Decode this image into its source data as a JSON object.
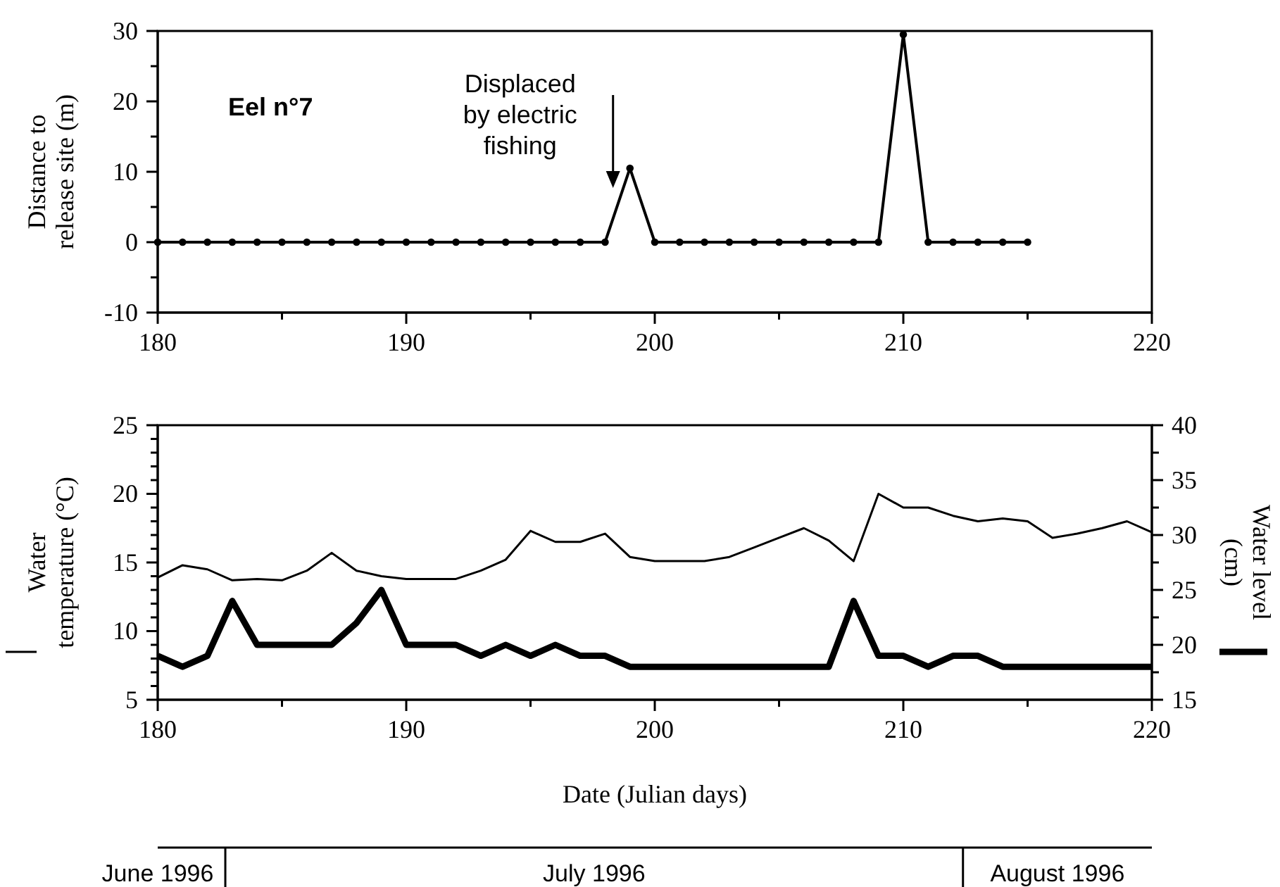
{
  "chart_data": [
    {
      "type": "line",
      "ylabel": "Distance to release site (m)",
      "marker": "circle",
      "xlim": [
        180,
        220
      ],
      "xticks": [
        180,
        {
          "value": 185,
          "label": null
        },
        190,
        {
          "value": 195,
          "label": null
        },
        200,
        {
          "value": 205,
          "label": null
        },
        210,
        {
          "value": 215,
          "label": null
        },
        220
      ],
      "ylim": [
        -10,
        30
      ],
      "yticks": [
        -10,
        {
          "value": -5,
          "label": null
        },
        0,
        {
          "value": 5,
          "label": null
        },
        10,
        {
          "value": 15,
          "label": null
        },
        20,
        {
          "value": 25,
          "label": null
        },
        30
      ],
      "annotations": [
        "Eel n°7",
        {
          "text": "Displaced by electric fishing",
          "x": 199,
          "y": 10.5
        }
      ],
      "x": [
        180,
        181,
        182,
        183,
        184,
        185,
        186,
        187,
        188,
        189,
        190,
        191,
        192,
        193,
        194,
        195,
        196,
        197,
        198,
        199,
        200,
        201,
        202,
        203,
        204,
        205,
        206,
        207,
        208,
        209,
        210,
        211,
        212,
        213,
        214,
        215
      ],
      "series": [
        {
          "color": "#000000",
          "values": [
            0,
            0,
            0,
            0,
            0,
            0,
            0,
            0,
            0,
            0,
            0,
            0,
            0,
            0,
            0,
            0,
            0,
            0,
            0,
            10.5,
            0,
            0,
            0,
            0,
            0,
            0,
            0,
            0,
            0,
            0,
            29.5,
            0,
            0,
            0,
            0,
            0
          ]
        }
      ]
    },
    {
      "type": "line",
      "xlabel": "Date (Julian days)",
      "ylabel": "Water temperature (°C)",
      "y2label": "Water level (cm)",
      "xlim": [
        180,
        220
      ],
      "xticks": [
        180,
        {
          "value": 185,
          "label": null
        },
        190,
        {
          "value": 195,
          "label": null
        },
        200,
        {
          "value": 205,
          "label": null
        },
        210,
        {
          "value": 215,
          "label": null
        },
        220
      ],
      "ylim": [
        5,
        25
      ],
      "yticks": [
        5,
        {
          "value": 6,
          "label": null
        },
        {
          "value": 7,
          "label": null
        },
        {
          "value": 8,
          "label": null
        },
        {
          "value": 9,
          "label": null
        },
        10,
        {
          "value": 11,
          "label": null
        },
        {
          "value": 12,
          "label": null
        },
        {
          "value": 13,
          "label": null
        },
        {
          "value": 14,
          "label": null
        },
        15,
        {
          "value": 16,
          "label": null
        },
        {
          "value": 17,
          "label": null
        },
        {
          "value": 18,
          "label": null
        },
        {
          "value": 19,
          "label": null
        },
        20,
        {
          "value": 21,
          "label": null
        },
        {
          "value": 22,
          "label": null
        },
        {
          "value": 23,
          "label": null
        },
        {
          "value": 24,
          "label": null
        },
        25
      ],
      "y2lim": [
        15,
        40
      ],
      "y2ticks": [
        15,
        {
          "value": 17.5,
          "label": null
        },
        20,
        {
          "value": 22.5,
          "label": null
        },
        25,
        {
          "value": 27.5,
          "label": null
        },
        30,
        {
          "value": 32.5,
          "label": null
        },
        35,
        {
          "value": 37.5,
          "label": null
        },
        40
      ],
      "annotations": [
        "June 1996",
        "July 1996",
        "August 1996"
      ],
      "x": [
        180,
        181,
        182,
        183,
        184,
        185,
        186,
        187,
        188,
        189,
        190,
        191,
        192,
        193,
        194,
        195,
        196,
        197,
        198,
        199,
        200,
        201,
        202,
        203,
        204,
        205,
        206,
        207,
        208,
        209,
        210,
        211,
        212,
        213,
        214,
        215,
        216,
        217,
        218,
        219,
        220
      ],
      "series": [
        {
          "color": "#000000",
          "values": [
            13.9,
            14.8,
            14.5,
            13.7,
            13.8,
            13.7,
            14.4,
            15.7,
            14.4,
            14.0,
            13.8,
            13.8,
            13.8,
            14.4,
            15.2,
            17.3,
            16.5,
            16.5,
            17.1,
            15.4,
            15.1,
            15.1,
            15.1,
            15.4,
            16.1,
            16.8,
            17.5,
            16.6,
            15.1,
            20.0,
            19.0,
            19.0,
            18.4,
            18.0,
            18.2,
            18.0,
            16.8,
            17.1,
            17.5,
            18.0,
            17.2
          ]
        },
        {
          "color": "#000000",
          "axis": "y2",
          "values": [
            19,
            18,
            19,
            24,
            20,
            20,
            20,
            20,
            22,
            25,
            20,
            20,
            20,
            19,
            20,
            19,
            20,
            19,
            19,
            18,
            18,
            18,
            18,
            18,
            18,
            18,
            18,
            18,
            24,
            19,
            19,
            18,
            19,
            19,
            18,
            18,
            18,
            18,
            18,
            18,
            18
          ]
        }
      ]
    }
  ]
}
